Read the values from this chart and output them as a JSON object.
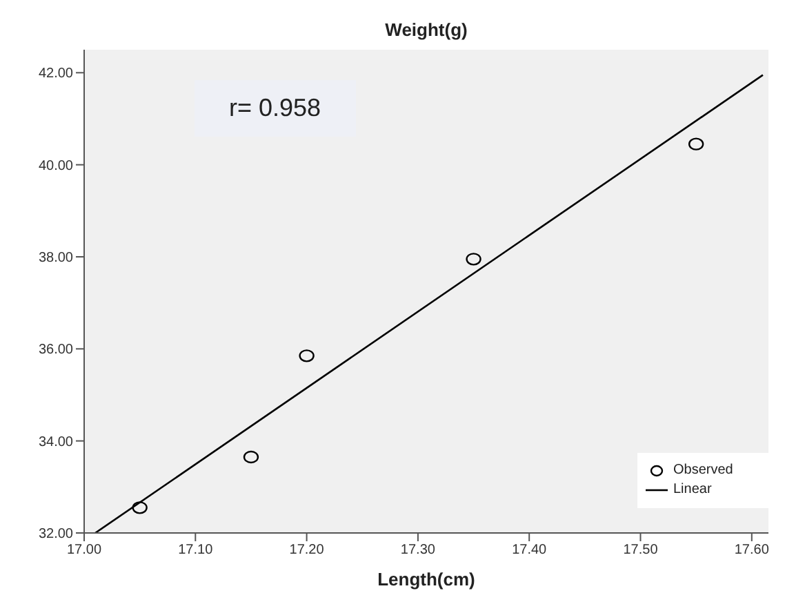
{
  "chart_data": {
    "type": "scatter",
    "ylabel": "Weight(g)",
    "xlabel": "Length(cm)",
    "annotations": [
      "r= 0.958"
    ],
    "xlim": [
      17.0,
      17.615
    ],
    "xticks": [
      {
        "value": 17.0,
        "label": "17.00"
      },
      {
        "value": 17.1,
        "label": "17.10"
      },
      {
        "value": 17.2,
        "label": "17.20"
      },
      {
        "value": 17.3,
        "label": "17.30"
      },
      {
        "value": 17.4,
        "label": "17.40"
      },
      {
        "value": 17.5,
        "label": "17.50"
      },
      {
        "value": 17.6,
        "label": "17.60"
      }
    ],
    "ylim": [
      32,
      42.5
    ],
    "yticks": [
      {
        "value": 32,
        "label": "32.00"
      },
      {
        "value": 34,
        "label": "34.00"
      },
      {
        "value": 36,
        "label": "36.00"
      },
      {
        "value": 38,
        "label": "38.00"
      },
      {
        "value": 40,
        "label": "40.00"
      },
      {
        "value": 42,
        "label": "42.00"
      }
    ],
    "series": [
      {
        "name": "Observed",
        "marker": "circle",
        "color": "#000000",
        "x": [
          17.05,
          17.15,
          17.2,
          17.35,
          17.55
        ],
        "values": [
          32.55,
          33.65,
          35.85,
          37.95,
          40.45
        ]
      },
      {
        "name": "Linear",
        "type": "line",
        "marker": "none",
        "color": "#000000",
        "x": [
          17.01,
          17.61
        ],
        "values": [
          32.0,
          41.95
        ]
      }
    ],
    "legend": "bottom right",
    "grid": false
  }
}
